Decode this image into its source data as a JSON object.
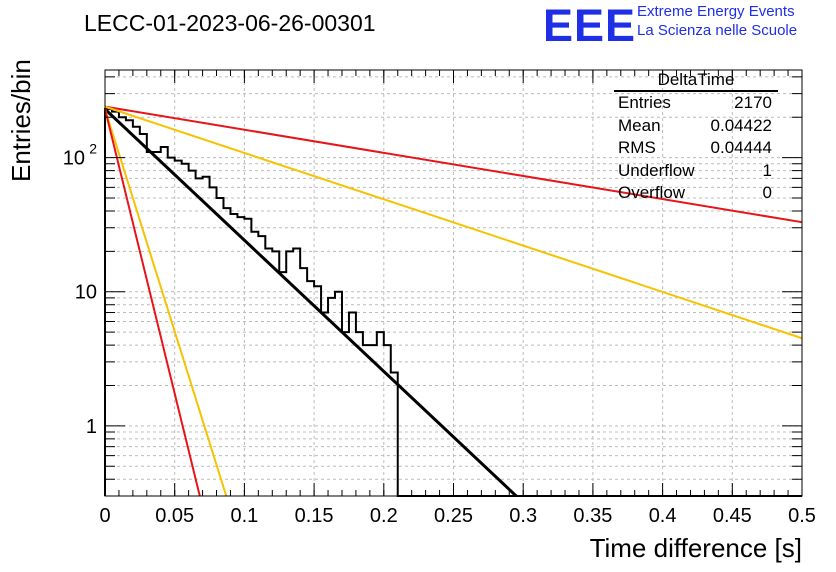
{
  "header": {
    "title": "LECC-01-2023-06-26-00301",
    "logo_text": "EEE",
    "logo_line1": "Extreme Energy Events",
    "logo_line2": "La Scienza nelle Scuole"
  },
  "stats_box": {
    "name": "DeltaTime",
    "rows": [
      {
        "label": "Entries",
        "value": "2170"
      },
      {
        "label": "Mean",
        "value": "0.04422"
      },
      {
        "label": "RMS",
        "value": "0.04444"
      },
      {
        "label": "Underflow",
        "value": "1"
      },
      {
        "label": "Overflow",
        "value": "0"
      }
    ]
  },
  "colors": {
    "histogram": "#000000",
    "red_fit": "#e8141c",
    "yellow_fit": "#f7c200",
    "black_fit": "#000000",
    "grid": "#bcbcbc"
  },
  "chart_data": {
    "type": "line",
    "xlabel": "Time difference [s]",
    "ylabel": "Entries/bin",
    "xlim": [
      0,
      0.5
    ],
    "ylim": [
      0.3,
      450
    ],
    "yscale": "log",
    "grid": true,
    "x_ticks": [
      "0",
      "0.05",
      "0.1",
      "0.15",
      "0.2",
      "0.25",
      "0.3",
      "0.35",
      "0.4",
      "0.45",
      "0.5"
    ],
    "y_ticks": [
      {
        "value": 1,
        "label": "1"
      },
      {
        "value": 10,
        "label": "10"
      },
      {
        "value": 100,
        "label": "10^2"
      }
    ],
    "histogram": {
      "bin_width": 0.005,
      "counts": [
        230,
        220,
        200,
        190,
        170,
        150,
        110,
        110,
        120,
        100,
        95,
        90,
        80,
        70,
        72,
        60,
        50,
        42,
        38,
        36,
        35,
        28,
        26,
        21,
        20,
        14,
        20,
        21,
        15,
        12,
        11,
        7,
        9,
        10,
        5,
        7,
        5,
        4,
        4,
        5,
        4,
        2.5,
        0.1,
        0.1,
        0.1,
        0.1,
        0.1,
        0,
        0,
        0,
        0,
        0,
        0,
        0,
        0,
        0,
        0,
        0,
        0,
        0,
        0,
        0,
        0,
        0,
        0,
        0,
        0,
        0,
        0,
        0,
        0,
        0,
        0,
        0,
        0,
        0,
        0,
        0,
        0,
        0,
        0,
        0,
        0,
        0,
        0,
        0,
        0,
        0,
        0,
        0,
        0,
        0,
        0,
        0,
        0,
        0,
        0,
        0,
        0,
        0
      ]
    },
    "series": [
      {
        "style": "black",
        "points": [
          [
            0,
            230
          ],
          [
            0.295,
            0.3
          ]
        ]
      },
      {
        "style": "red",
        "points": [
          [
            0,
            240
          ],
          [
            0.5,
            33
          ]
        ]
      },
      {
        "style": "yellow",
        "points": [
          [
            0,
            240
          ],
          [
            0.5,
            4.5
          ]
        ]
      },
      {
        "style": "yellow",
        "points": [
          [
            0,
            230
          ],
          [
            0.087,
            0.3
          ]
        ]
      },
      {
        "style": "red",
        "points": [
          [
            0,
            230
          ],
          [
            0.068,
            0.3
          ]
        ]
      }
    ]
  }
}
